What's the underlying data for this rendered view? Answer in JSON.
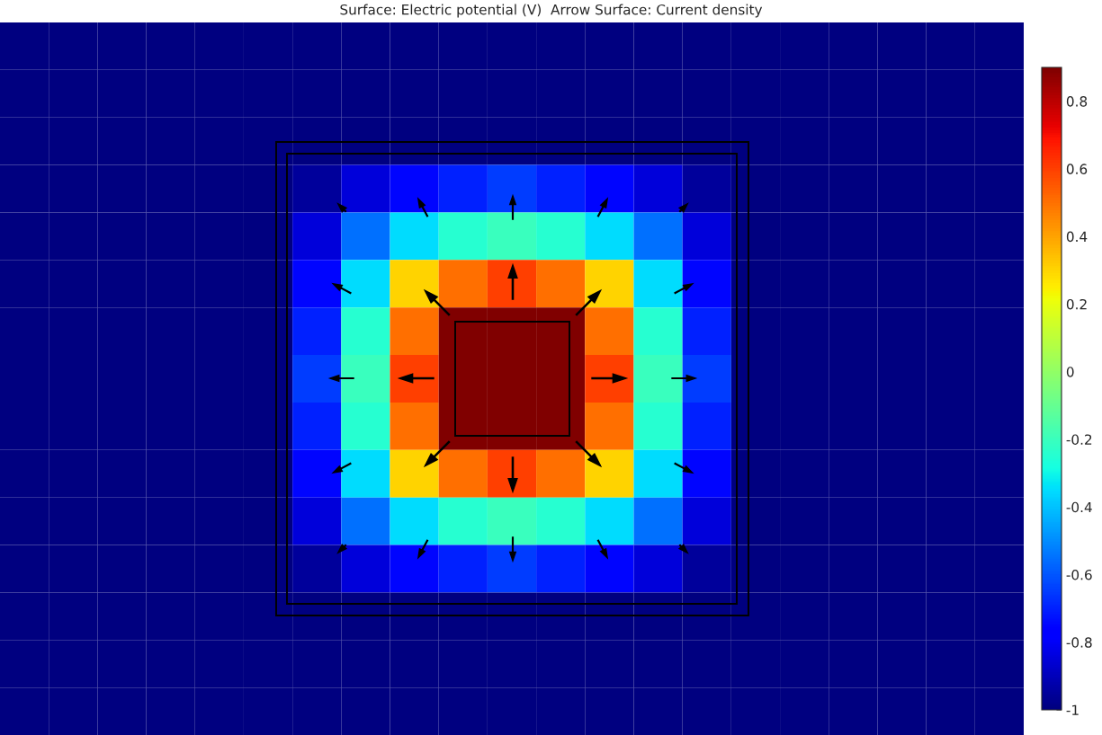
{
  "chart_data": {
    "type": "heatmap",
    "title": "Surface: Electric potential (V)  Arrow Surface: Current density",
    "categories": [
      null,
      null,
      null,
      null,
      null,
      null,
      null,
      null,
      null,
      null,
      null,
      null,
      null,
      null,
      null,
      null,
      null,
      null,
      null,
      null,
      null
    ],
    "y_categories": [
      null,
      null,
      null,
      null,
      null,
      null,
      null,
      null,
      null,
      null,
      null,
      null,
      null,
      null,
      null
    ],
    "cells": [
      [
        -1,
        -1,
        -1,
        -1,
        -1,
        -1,
        -1,
        -1,
        -1,
        -1,
        -1,
        -1,
        -1,
        -1,
        -1,
        -1,
        -1,
        -1,
        -1,
        -1,
        -1
      ],
      [
        -1,
        -1,
        -1,
        -1,
        -1,
        -1,
        -1,
        -1,
        -1,
        -1,
        -1,
        -1,
        -1,
        -1,
        -1,
        -1,
        -1,
        -1,
        -1,
        -1,
        -1
      ],
      [
        -1,
        -1,
        -1,
        -1,
        -1,
        -1,
        -1,
        -1,
        -1,
        -1,
        -1,
        -1,
        -1,
        -1,
        -1,
        -1,
        -1,
        -1,
        -1,
        -1,
        -1
      ],
      [
        -1,
        -1,
        -1,
        -1,
        -1,
        -1,
        -0.95,
        -0.85,
        -0.75,
        -0.7,
        -0.65,
        -0.7,
        -0.75,
        -0.85,
        -0.95,
        -1,
        -1,
        -1,
        -1,
        -1,
        -1
      ],
      [
        -1,
        -1,
        -1,
        -1,
        -1,
        -1,
        -0.85,
        -0.55,
        -0.35,
        -0.25,
        -0.2,
        -0.25,
        -0.35,
        -0.55,
        -0.85,
        -1,
        -1,
        -1,
        -1,
        -1,
        -1
      ],
      [
        -1,
        -1,
        -1,
        -1,
        -1,
        -1,
        -0.75,
        -0.35,
        0.3,
        0.5,
        0.6,
        0.5,
        0.3,
        -0.35,
        -0.75,
        -1,
        -1,
        -1,
        -1,
        -1,
        -1
      ],
      [
        -1,
        -1,
        -1,
        -1,
        -1,
        -1,
        -0.7,
        -0.25,
        0.5,
        0.9,
        0.9,
        0.9,
        0.5,
        -0.25,
        -0.7,
        -1,
        -1,
        -1,
        -1,
        -1,
        -1
      ],
      [
        -1,
        -1,
        -1,
        -1,
        -1,
        -1,
        -0.65,
        -0.2,
        0.6,
        0.9,
        0.9,
        0.9,
        0.6,
        -0.2,
        -0.65,
        -1,
        -1,
        -1,
        -1,
        -1,
        -1
      ],
      [
        -1,
        -1,
        -1,
        -1,
        -1,
        -1,
        -0.7,
        -0.25,
        0.5,
        0.9,
        0.9,
        0.9,
        0.5,
        -0.25,
        -0.7,
        -1,
        -1,
        -1,
        -1,
        -1,
        -1
      ],
      [
        -1,
        -1,
        -1,
        -1,
        -1,
        -1,
        -0.75,
        -0.35,
        0.3,
        0.5,
        0.6,
        0.5,
        0.3,
        -0.35,
        -0.75,
        -1,
        -1,
        -1,
        -1,
        -1,
        -1
      ],
      [
        -1,
        -1,
        -1,
        -1,
        -1,
        -1,
        -0.85,
        -0.55,
        -0.35,
        -0.25,
        -0.2,
        -0.25,
        -0.35,
        -0.55,
        -0.85,
        -1,
        -1,
        -1,
        -1,
        -1,
        -1
      ],
      [
        -1,
        -1,
        -1,
        -1,
        -1,
        -1,
        -0.95,
        -0.85,
        -0.75,
        -0.7,
        -0.65,
        -0.7,
        -0.75,
        -0.85,
        -0.95,
        -1,
        -1,
        -1,
        -1,
        -1,
        -1
      ],
      [
        -1,
        -1,
        -1,
        -1,
        -1,
        -1,
        -1,
        -1,
        -1,
        -1,
        -1,
        -1,
        -1,
        -1,
        -1,
        -1,
        -1,
        -1,
        -1,
        -1,
        -1
      ],
      [
        -1,
        -1,
        -1,
        -1,
        -1,
        -1,
        -1,
        -1,
        -1,
        -1,
        -1,
        -1,
        -1,
        -1,
        -1,
        -1,
        -1,
        -1,
        -1,
        -1,
        -1
      ],
      [
        -1,
        -1,
        -1,
        -1,
        -1,
        -1,
        -1,
        -1,
        -1,
        -1,
        -1,
        -1,
        -1,
        -1,
        -1,
        -1,
        -1,
        -1,
        -1,
        -1,
        -1
      ]
    ],
    "clim": [
      -1,
      0.9
    ],
    "cticks": [
      -1,
      -0.8,
      -0.6,
      -0.4,
      -0.2,
      0,
      0.2,
      0.4,
      0.6,
      0.8
    ]
  }
}
